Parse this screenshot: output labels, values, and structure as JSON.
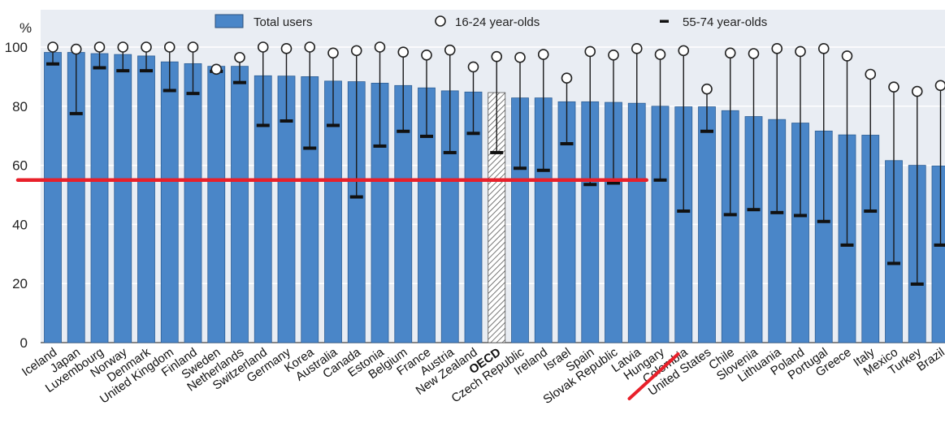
{
  "chart_data": {
    "type": "bar",
    "ylabel": "%",
    "ylim": [
      0,
      100
    ],
    "yticks": [
      0,
      20,
      40,
      60,
      80,
      100
    ],
    "grid": true,
    "legend_position": "top",
    "categories": [
      "Iceland",
      "Japan",
      "Luxembourg",
      "Norway",
      "Denmark",
      "United Kingdom",
      "Finland",
      "Sweden",
      "Netherlands",
      "Switzerland",
      "Germany",
      "Korea",
      "Australia",
      "Canada",
      "Estonia",
      "Belgium",
      "France",
      "Austria",
      "New Zealand",
      "OECD",
      "Czech Republic",
      "Ireland",
      "Israel",
      "Spain",
      "Slovak Republic",
      "Latvia",
      "Hungary",
      "Colombia",
      "United States",
      "Chile",
      "Slovenia",
      "Lithuania",
      "Poland",
      "Portugal",
      "Greece",
      "Italy",
      "Mexico",
      "Turkey",
      "Brazil"
    ],
    "highlight_category": "OECD",
    "series": [
      {
        "name": "Total users",
        "kind": "bar",
        "color": "#4a86c8",
        "values": [
          98.2,
          98.2,
          97.8,
          97.5,
          97.0,
          95.0,
          94.4,
          93.5,
          93.5,
          90.3,
          90.2,
          90.0,
          88.5,
          88.3,
          87.8,
          87.0,
          86.2,
          85.2,
          84.8,
          84.6,
          82.8,
          82.8,
          81.5,
          81.5,
          81.3,
          81.0,
          80.0,
          79.8,
          79.8,
          78.5,
          76.5,
          75.5,
          74.3,
          71.6,
          70.3,
          70.2,
          61.6,
          60.0,
          59.8
        ]
      },
      {
        "name": "16-24 year-olds",
        "kind": "circle",
        "values": [
          100,
          99.3,
          100,
          100,
          100,
          100,
          100,
          92.5,
          96.5,
          100,
          99.5,
          100,
          98,
          98.8,
          100,
          98.3,
          97.3,
          99.0,
          93.3,
          96.8,
          96.5,
          97.5,
          89.5,
          98.5,
          97.3,
          99.5,
          97.5,
          98.8,
          85.8,
          98.0,
          97.8,
          99.5,
          98.5,
          99.5,
          97.0,
          90.8,
          86.5,
          85.0,
          87.0
        ]
      },
      {
        "name": "55-74 year-olds",
        "kind": "dash",
        "values": [
          94.3,
          77.5,
          93.0,
          92.0,
          92.0,
          85.3,
          84.3,
          91.8,
          88.0,
          73.5,
          75.0,
          65.8,
          73.5,
          49.3,
          66.5,
          71.5,
          69.8,
          64.3,
          70.8,
          64.3,
          59.0,
          58.3,
          67.3,
          53.5,
          54.0,
          55.0,
          55.0,
          44.5,
          71.5,
          43.3,
          45.0,
          44.0,
          43.0,
          41.0,
          33.0,
          44.5,
          26.8,
          19.8,
          33.0
        ]
      }
    ],
    "annotations": {
      "red_line_value": 55,
      "red_line_from": "Iceland",
      "red_line_to": "Latvia",
      "red_mark_at": "Hungary",
      "color": "#e8202a"
    }
  }
}
